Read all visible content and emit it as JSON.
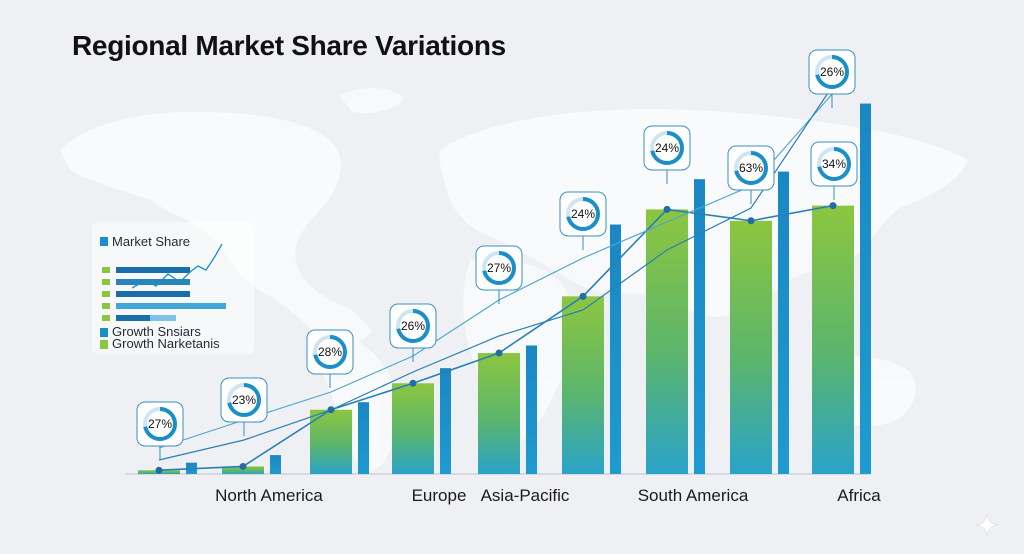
{
  "chart_data": {
    "type": "bar",
    "title": "Regional Market Share Variations",
    "categories": [
      "North America",
      "Europe",
      "Asia-Pacific",
      "South America",
      "Africa"
    ],
    "groups": [
      {
        "label": "",
        "green": 1,
        "blue": 3,
        "badge": "27%"
      },
      {
        "label": "North America",
        "green": 2,
        "blue": 5,
        "badge": "23%"
      },
      {
        "label": "",
        "green": 17,
        "blue": 19,
        "badge": "28%"
      },
      {
        "label": "Europe",
        "green": 24,
        "blue": 28,
        "badge": "26%"
      },
      {
        "label": "Asia-Pacific",
        "green": 32,
        "blue": 34,
        "badge": "27%"
      },
      {
        "label": "",
        "green": 47,
        "blue": 66,
        "badge": "24%"
      },
      {
        "label": "South America",
        "green": 70,
        "blue": 78,
        "badge": "24%"
      },
      {
        "label": "",
        "green": 67,
        "blue": 80,
        "badge": "63%"
      },
      {
        "label": "Africa",
        "green": 71,
        "blue": 98,
        "badge": "34%"
      }
    ],
    "series": [
      {
        "name": "Market Share",
        "color": "#1a8fc9"
      },
      {
        "name": "Growth Snsiars",
        "color": "#1a8fc9"
      },
      {
        "name": "Growth Narketanis",
        "color": "#8cc63f"
      }
    ],
    "top_badge": "26%",
    "ylim": [
      0,
      100
    ],
    "legend_position": "left"
  },
  "legend": {
    "items": [
      {
        "label": "Market Share",
        "color": "#1a8fc9"
      },
      {
        "label": "Growth Snsiars",
        "color": "#1a8fc9"
      },
      {
        "label": "Growth Narketanis",
        "color": "#8cc63f"
      }
    ]
  },
  "colors": {
    "bar_green_top": "#8cc63f",
    "bar_green_bottom": "#2fa3c8",
    "bar_blue": "#1a8fc9",
    "line": "#2a7fb8",
    "map": "#fbfcfd"
  },
  "icons": {
    "corner": "sparkle-icon"
  }
}
